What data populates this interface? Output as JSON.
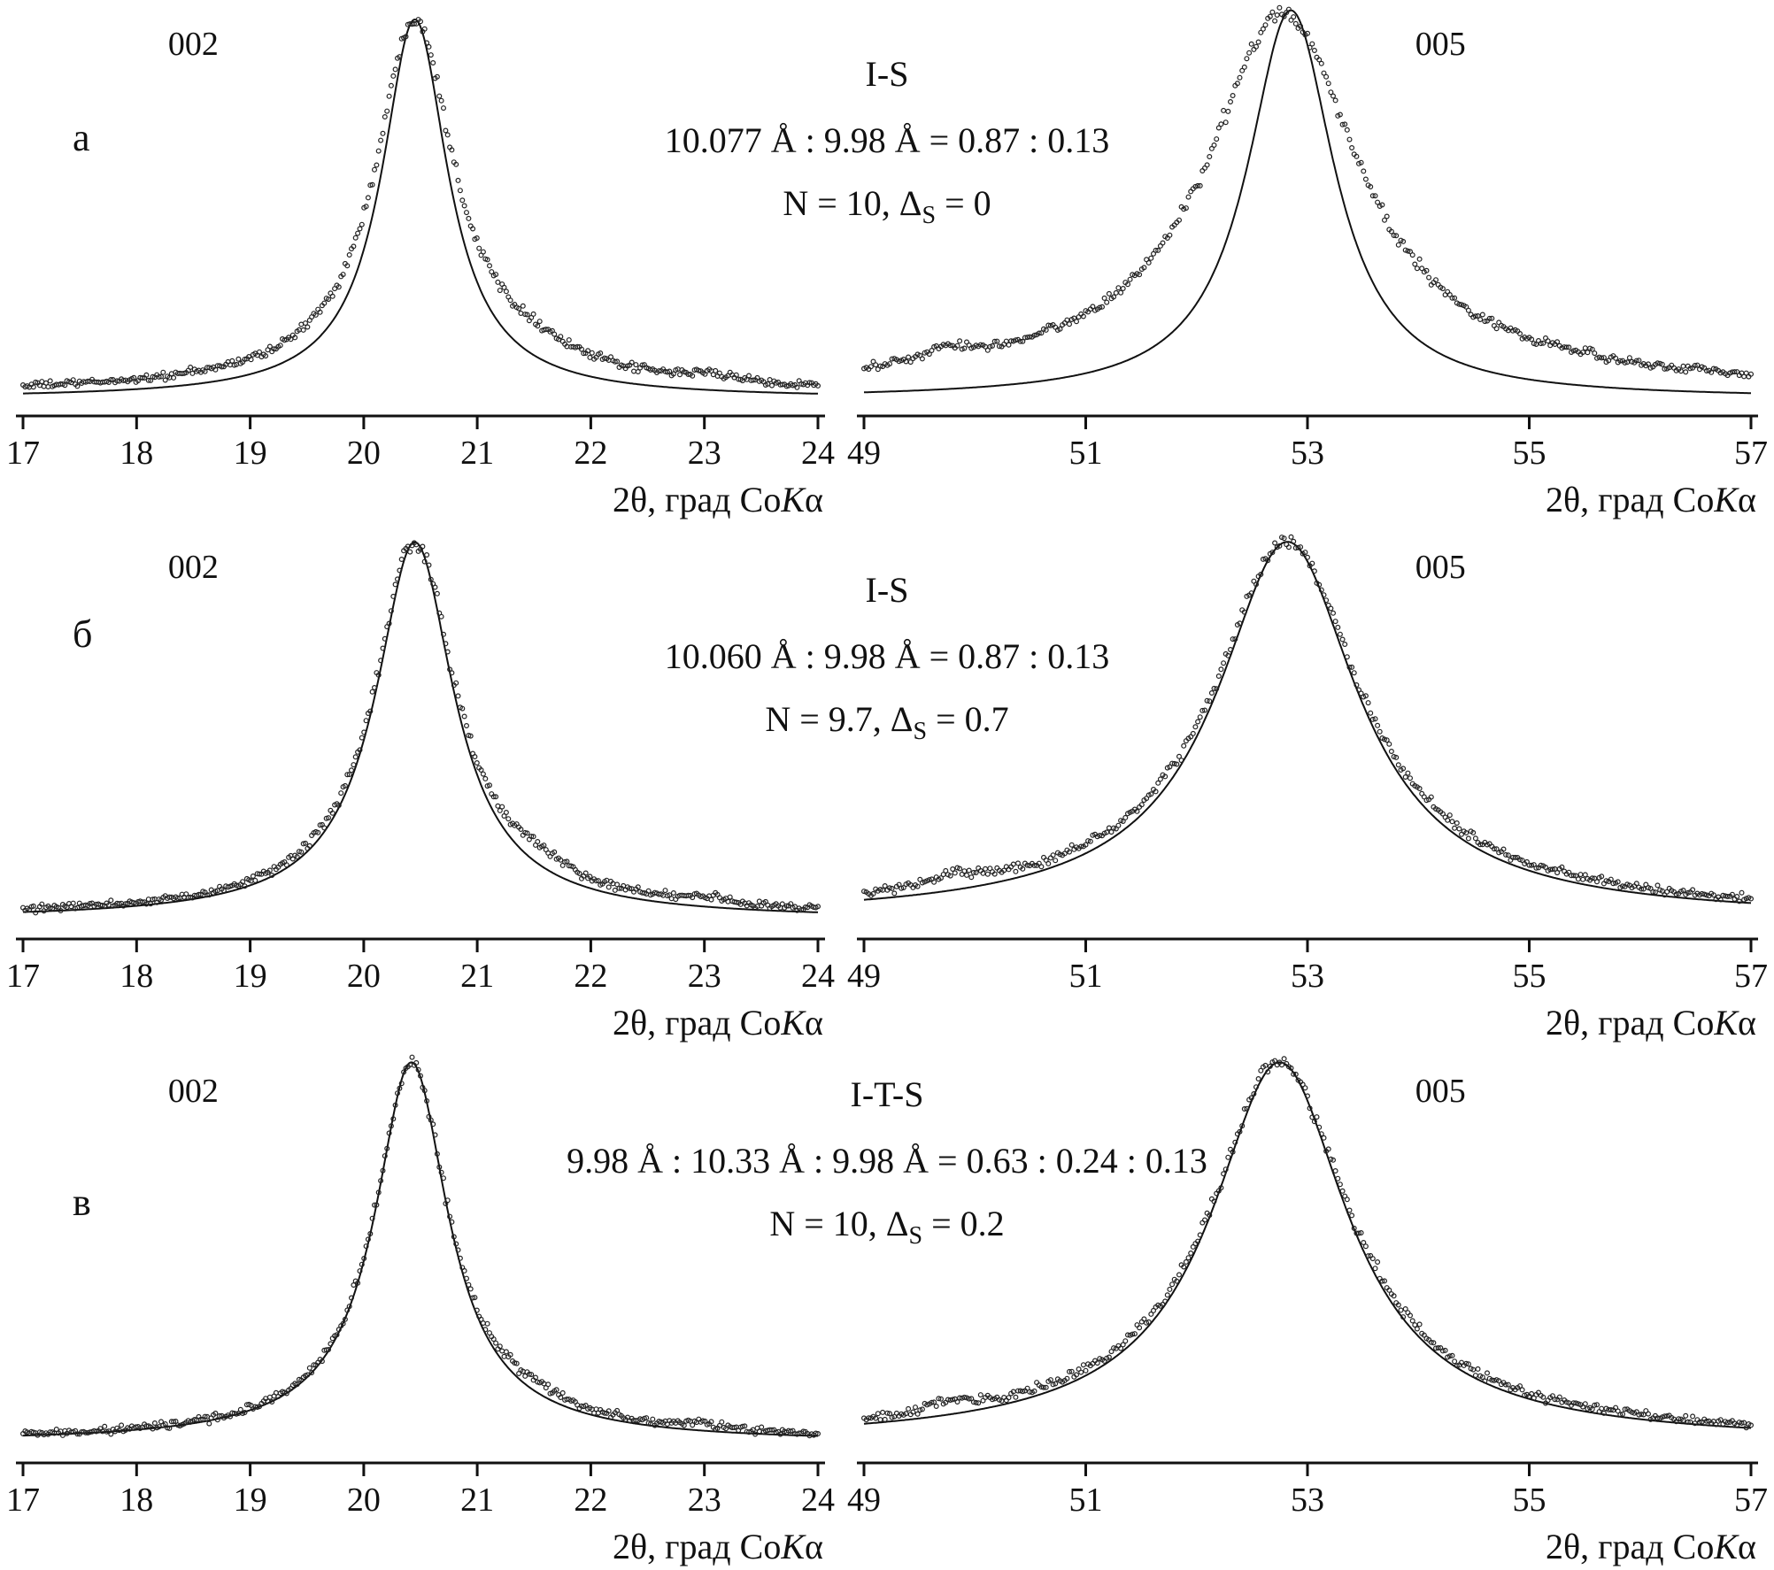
{
  "figure": {
    "background": "#ffffff",
    "ink": "#111111",
    "description": "Experimental (open-circle scatter) vs calculated (solid line) XRD profiles of 002 and 005 basal reflections for illite-smectite models"
  },
  "rows": [
    {
      "label": "а",
      "title": "I-S",
      "formula": "10.077 Å : 9.98 Å = 0.87 : 0.13",
      "n_pre": "N = 10, Δ",
      "n_sub": "S",
      "n_post": " = 0"
    },
    {
      "label": "б",
      "title": "I-S",
      "formula": "10.060 Å : 9.98 Å = 0.87 : 0.13",
      "n_pre": "N = 9.7, Δ",
      "n_sub": "S",
      "n_post": " = 0.7"
    },
    {
      "label": "в",
      "title": "I-T-S",
      "formula": "9.98 Å : 10.33 Å : 9.98 Å = 0.63 : 0.24 : 0.13",
      "n_pre": "N = 10, Δ",
      "n_sub": "S",
      "n_post": " = 0.2"
    }
  ],
  "chart_data": [
    {
      "id": "a-002",
      "row": "а",
      "type": "line",
      "profile_model": "lorentzian-sum",
      "peak_label": "002",
      "peak_label_x": 18.5,
      "xlabel_pre": "2θ, град Co",
      "xlabel_italic": "K",
      "xlabel_post": "α",
      "xlim": [
        17,
        24
      ],
      "xticks": [
        17,
        18,
        19,
        20,
        21,
        22,
        23,
        24
      ],
      "grid": false,
      "legend": "none",
      "approx_peak_maximum_2theta": 20.45,
      "series": [
        {
          "name": "experimental",
          "style": "scatter",
          "marker": "open-circle",
          "baseline": 0.018,
          "noise": 0.006,
          "peaks": [
            {
              "center": 20.45,
              "fwhm": 0.82,
              "amplitude": 0.93
            },
            {
              "center": 20.55,
              "fwhm": 2.6,
              "amplitude": 0.055
            },
            {
              "center": 21.45,
              "fwhm": 0.95,
              "amplitude": 0.035
            },
            {
              "center": 23.05,
              "fwhm": 0.5,
              "amplitude": 0.018
            }
          ]
        },
        {
          "name": "calculated",
          "style": "line",
          "baseline": 0.005,
          "peaks": [
            {
              "center": 20.45,
              "fwhm": 0.7,
              "amplitude": 0.96
            },
            {
              "center": 20.5,
              "fwhm": 1.9,
              "amplitude": 0.035
            }
          ]
        }
      ]
    },
    {
      "id": "a-005",
      "row": "а",
      "type": "line",
      "profile_model": "lorentzian-sum",
      "peak_label": "005",
      "peak_label_x": 54.2,
      "xlabel_pre": "2θ, град Co",
      "xlabel_italic": "K",
      "xlabel_post": "α",
      "xlim": [
        49,
        57
      ],
      "xticks": [
        49,
        51,
        53,
        55,
        57
      ],
      "grid": false,
      "legend": "none",
      "approx_peak_maximum_2theta": 52.8,
      "series": [
        {
          "name": "experimental",
          "style": "scatter",
          "marker": "open-circle",
          "baseline": 0.018,
          "noise": 0.006,
          "peaks": [
            {
              "center": 52.78,
              "fwhm": 1.6,
              "amplitude": 0.93
            },
            {
              "center": 52.6,
              "fwhm": 5.0,
              "amplitude": 0.075
            },
            {
              "center": 49.75,
              "fwhm": 0.55,
              "amplitude": 0.03
            }
          ]
        },
        {
          "name": "calculated",
          "style": "line",
          "baseline": 0.004,
          "peaks": [
            {
              "center": 52.85,
              "fwhm": 0.95,
              "amplitude": 1.0
            },
            {
              "center": 52.85,
              "fwhm": 2.0,
              "amplitude": 0.02
            }
          ]
        }
      ]
    },
    {
      "id": "b-002",
      "row": "б",
      "type": "line",
      "profile_model": "lorentzian-sum",
      "peak_label": "002",
      "peak_label_x": 18.5,
      "xlabel_pre": "2θ, град Co",
      "xlabel_italic": "K",
      "xlabel_post": "α",
      "xlim": [
        17,
        24
      ],
      "xticks": [
        17,
        18,
        19,
        20,
        21,
        22,
        23,
        24
      ],
      "grid": false,
      "legend": "none",
      "approx_peak_maximum_2theta": 20.45,
      "series": [
        {
          "name": "experimental",
          "style": "scatter",
          "marker": "open-circle",
          "baseline": 0.016,
          "noise": 0.006,
          "peaks": [
            {
              "center": 20.45,
              "fwhm": 0.85,
              "amplitude": 0.93
            },
            {
              "center": 20.55,
              "fwhm": 2.6,
              "amplitude": 0.055
            },
            {
              "center": 21.5,
              "fwhm": 0.95,
              "amplitude": 0.03
            },
            {
              "center": 23.05,
              "fwhm": 0.5,
              "amplitude": 0.016
            }
          ]
        },
        {
          "name": "calculated",
          "style": "line",
          "baseline": 0.011,
          "peaks": [
            {
              "center": 20.45,
              "fwhm": 0.82,
              "amplitude": 0.94
            },
            {
              "center": 20.5,
              "fwhm": 2.3,
              "amplitude": 0.05
            }
          ]
        }
      ]
    },
    {
      "id": "b-005",
      "row": "б",
      "type": "line",
      "profile_model": "lorentzian-sum",
      "peak_label": "005",
      "peak_label_x": 54.2,
      "xlabel_pre": "2θ, град Co",
      "xlabel_italic": "K",
      "xlabel_post": "α",
      "xlim": [
        49,
        57
      ],
      "xticks": [
        49,
        51,
        53,
        55,
        57
      ],
      "grid": false,
      "legend": "none",
      "approx_peak_maximum_2theta": 52.8,
      "series": [
        {
          "name": "experimental",
          "style": "scatter",
          "marker": "open-circle",
          "baseline": 0.018,
          "noise": 0.006,
          "peaks": [
            {
              "center": 52.82,
              "fwhm": 1.55,
              "amplitude": 0.92
            },
            {
              "center": 52.6,
              "fwhm": 5.0,
              "amplitude": 0.07
            },
            {
              "center": 49.8,
              "fwhm": 0.5,
              "amplitude": 0.028
            }
          ]
        },
        {
          "name": "calculated",
          "style": "line",
          "baseline": 0.012,
          "peaks": [
            {
              "center": 52.82,
              "fwhm": 1.5,
              "amplitude": 0.93
            },
            {
              "center": 52.7,
              "fwhm": 4.2,
              "amplitude": 0.06
            }
          ]
        }
      ]
    },
    {
      "id": "v-002",
      "row": "в",
      "type": "line",
      "profile_model": "lorentzian-sum",
      "peak_label": "002",
      "peak_label_x": 18.5,
      "xlabel_pre": "2θ, град Co",
      "xlabel_italic": "K",
      "xlabel_post": "α",
      "xlim": [
        17,
        24
      ],
      "xticks": [
        17,
        18,
        19,
        20,
        21,
        22,
        23,
        24
      ],
      "grid": false,
      "legend": "none",
      "approx_peak_maximum_2theta": 20.42,
      "series": [
        {
          "name": "experimental",
          "style": "scatter",
          "marker": "open-circle",
          "baseline": 0.016,
          "noise": 0.006,
          "peaks": [
            {
              "center": 20.42,
              "fwhm": 0.78,
              "amplitude": 0.94
            },
            {
              "center": 20.5,
              "fwhm": 2.5,
              "amplitude": 0.05
            },
            {
              "center": 21.5,
              "fwhm": 0.9,
              "amplitude": 0.025
            },
            {
              "center": 23.0,
              "fwhm": 0.5,
              "amplitude": 0.014
            }
          ]
        },
        {
          "name": "calculated",
          "style": "line",
          "baseline": 0.013,
          "peaks": [
            {
              "center": 20.42,
              "fwhm": 0.77,
              "amplitude": 0.95
            },
            {
              "center": 20.5,
              "fwhm": 2.4,
              "amplitude": 0.048
            }
          ]
        }
      ]
    },
    {
      "id": "v-005",
      "row": "в",
      "type": "line",
      "profile_model": "lorentzian-sum",
      "peak_label": "005",
      "peak_label_x": 54.2,
      "xlabel_pre": "2θ, град Co",
      "xlabel_italic": "K",
      "xlabel_post": "α",
      "xlim": [
        49,
        57
      ],
      "xticks": [
        49,
        51,
        53,
        55,
        57
      ],
      "grid": false,
      "legend": "none",
      "approx_peak_maximum_2theta": 52.75,
      "series": [
        {
          "name": "experimental",
          "style": "scatter",
          "marker": "open-circle",
          "baseline": 0.018,
          "noise": 0.006,
          "peaks": [
            {
              "center": 52.75,
              "fwhm": 1.5,
              "amplitude": 0.93
            },
            {
              "center": 52.6,
              "fwhm": 4.6,
              "amplitude": 0.065
            },
            {
              "center": 49.75,
              "fwhm": 0.5,
              "amplitude": 0.024
            }
          ]
        },
        {
          "name": "calculated",
          "style": "line",
          "baseline": 0.013,
          "peaks": [
            {
              "center": 52.75,
              "fwhm": 1.46,
              "amplitude": 0.94
            },
            {
              "center": 52.6,
              "fwhm": 4.0,
              "amplitude": 0.058
            }
          ]
        }
      ]
    }
  ]
}
